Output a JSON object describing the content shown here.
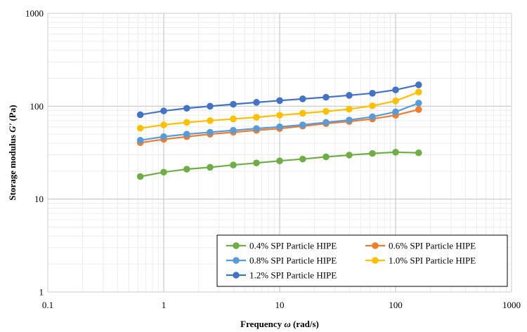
{
  "chart_data": {
    "type": "line",
    "title": "",
    "xlabel_prefix": "Frequency ",
    "xlabel_symbol": "ω",
    "xlabel_suffix": " (rad/s)",
    "ylabel_prefix": "Storage modulus ",
    "ylabel_symbol": "G'",
    "ylabel_suffix": " (Pa)",
    "xscale": "log",
    "yscale": "log",
    "xlim": [
      0.1,
      1000
    ],
    "ylim": [
      1,
      1000
    ],
    "x_ticks": [
      {
        "value": 0.1,
        "label": "0.1"
      },
      {
        "value": 1,
        "label": "1"
      },
      {
        "value": 10,
        "label": "10"
      },
      {
        "value": 100,
        "label": "100"
      },
      {
        "value": 1000,
        "label": "1000"
      }
    ],
    "y_ticks": [
      {
        "value": 1,
        "label": "1"
      },
      {
        "value": 10,
        "label": "10"
      },
      {
        "value": 100,
        "label": "100"
      },
      {
        "value": 1000,
        "label": "1000"
      }
    ],
    "grid": true,
    "legend_position": "bottom-right",
    "x": [
      0.628,
      1.0,
      1.58,
      2.51,
      3.98,
      6.31,
      10.0,
      15.8,
      25.1,
      39.8,
      63.1,
      100,
      158
    ],
    "series": [
      {
        "name": "0.4% SPI Particle HIPE",
        "color": "#70ad47",
        "values": [
          17.5,
          19.5,
          21.0,
          22.0,
          23.3,
          24.5,
          25.8,
          27.0,
          28.5,
          29.8,
          31.0,
          32.0,
          31.5
        ]
      },
      {
        "name": "0.6% SPI Particle HIPE",
        "color": "#ed7d31",
        "values": [
          40.5,
          44.0,
          47.0,
          50.0,
          52.5,
          55.0,
          57.5,
          61.0,
          65.0,
          68.5,
          73.0,
          80.0,
          92.0
        ]
      },
      {
        "name": "0.8% SPI Particle HIPE",
        "color": "#5b9bd5",
        "values": [
          43.0,
          47.0,
          50.0,
          52.5,
          55.0,
          57.5,
          60.0,
          63.0,
          67.0,
          71.0,
          77.0,
          87.0,
          108.0
        ]
      },
      {
        "name": "1.0% SPI Particle HIPE",
        "color": "#ffc000",
        "values": [
          58.0,
          63.0,
          67.0,
          70.0,
          73.0,
          76.0,
          80.0,
          84.0,
          88.0,
          93.0,
          101.0,
          114.0,
          142.0
        ]
      },
      {
        "name": "1.2% SPI Particle HIPE",
        "color": "#4472c4",
        "values": [
          81.0,
          89.0,
          95.0,
          100.0,
          105.0,
          110.0,
          115.0,
          120.0,
          125.0,
          131.0,
          138.0,
          150.0,
          170.0
        ]
      }
    ]
  }
}
